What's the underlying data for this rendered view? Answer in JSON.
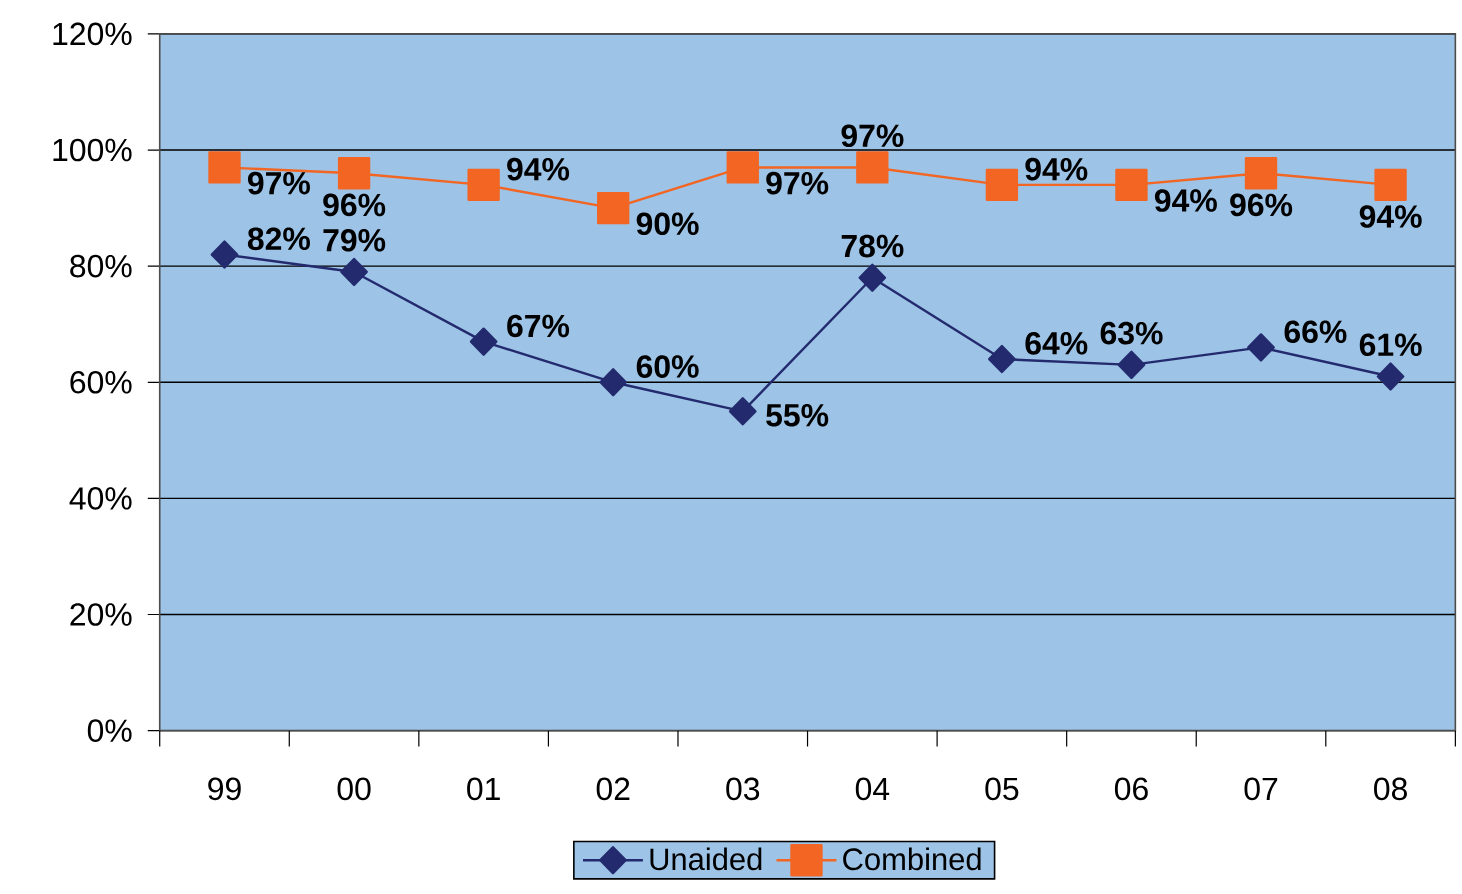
{
  "chart_data": {
    "type": "line",
    "categories": [
      "99",
      "00",
      "01",
      "02",
      "03",
      "04",
      "05",
      "06",
      "07",
      "08"
    ],
    "series": [
      {
        "name": "Unaided",
        "color": "#232a6e",
        "marker": "diamond",
        "values": [
          82,
          79,
          67,
          60,
          55,
          78,
          64,
          63,
          66,
          61
        ],
        "value_labels": [
          "82%",
          "79%",
          "67%",
          "60%",
          "55%",
          "78%",
          "64%",
          "63%",
          "66%",
          "61%"
        ]
      },
      {
        "name": "Combined",
        "color": "#f26522",
        "marker": "square",
        "values": [
          97,
          96,
          94,
          90,
          97,
          97,
          94,
          94,
          96,
          94
        ],
        "value_labels": [
          "97%",
          "96%",
          "94%",
          "90%",
          "97%",
          "97%",
          "94%",
          "94%",
          "96%",
          "94%"
        ]
      }
    ],
    "ylim": [
      0,
      120
    ],
    "yticks": [
      {
        "value": 0,
        "label": "0%"
      },
      {
        "value": 20,
        "label": "20%"
      },
      {
        "value": 40,
        "label": "40%"
      },
      {
        "value": 60,
        "label": "60%"
      },
      {
        "value": 80,
        "label": "80%"
      },
      {
        "value": 100,
        "label": "100%"
      },
      {
        "value": 120,
        "label": "120%"
      }
    ],
    "grid": "y",
    "legend": "bottom"
  }
}
